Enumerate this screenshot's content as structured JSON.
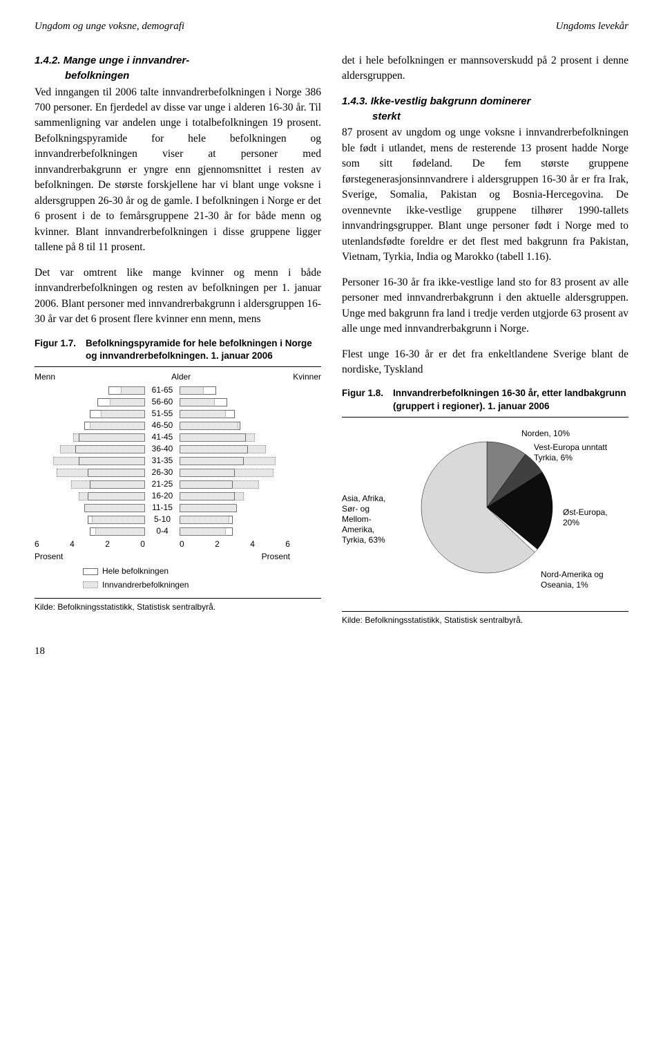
{
  "header": {
    "left": "Ungdom og unge voksne, demografi",
    "right": "Ungdoms levekår"
  },
  "left_col": {
    "sec142_title_a": "1.4.2. Mange unge i innvandrer-",
    "sec142_title_b": "befolkningen",
    "p1": "Ved inngangen til 2006 talte innvandrerbefolkningen i Norge 386 700 personer. En fjerdedel av disse var unge i alderen 16-30 år. Til sammenligning var andelen unge i totalbefolkningen 19 prosent. Befolkningspyramide for hele befolkningen og innvandrerbefolkningen viser at personer med innvandrerbakgrunn er yngre enn gjennomsnittet i resten av befolkningen. De største forskjellene har vi blant unge voksne i aldersgruppen 26-30 år og de gamle. I befolkningen i Norge er det 6 prosent i de to femårsgruppene 21-30 år for både menn og kvinner. Blant innvandrerbefolkningen i disse gruppene ligger tallene på 8 til 11 prosent.",
    "p2": "Det var omtrent like mange kvinner og menn i både innvandrerbefolkningen og resten av befolkningen per 1. januar 2006. Blant personer med innvandrerbakgrunn i aldersgruppen 16-30 år var det 6 prosent flere kvinner enn menn, mens"
  },
  "fig17": {
    "num": "Figur 1.7.",
    "title": "Befolkningspyramide for hele befolkningen i Norge og innvandrerbefolkningen. 1. januar 2006",
    "menn_label": "Menn",
    "alder_label": "Alder",
    "kvinner_label": "Kvinner",
    "prosent_left": "Prosent",
    "prosent_right": "Prosent",
    "legend_tot": "Hele befolkningen",
    "legend_imm": "Innvandrerbefolkningen",
    "source": "Kilde: Befolkningsstatistikk, Statistisk sentralbyrå.",
    "axis_max": 6,
    "ticks_left": [
      "6",
      "4",
      "2",
      "0"
    ],
    "ticks_right": [
      "0",
      "2",
      "4",
      "6"
    ],
    "rows": [
      {
        "label": "61-65",
        "m_tot": 2.0,
        "m_imm": 1.3,
        "k_tot": 2.0,
        "k_imm": 1.3
      },
      {
        "label": "56-60",
        "m_tot": 2.6,
        "m_imm": 1.9,
        "k_tot": 2.6,
        "k_imm": 1.9
      },
      {
        "label": "51-55",
        "m_tot": 3.0,
        "m_imm": 2.4,
        "k_tot": 3.0,
        "k_imm": 2.5
      },
      {
        "label": "46-50",
        "m_tot": 3.3,
        "m_imm": 3.0,
        "k_tot": 3.3,
        "k_imm": 3.2
      },
      {
        "label": "41-45",
        "m_tot": 3.6,
        "m_imm": 3.9,
        "k_tot": 3.6,
        "k_imm": 4.1
      },
      {
        "label": "36-40",
        "m_tot": 3.8,
        "m_imm": 4.6,
        "k_tot": 3.7,
        "k_imm": 4.7
      },
      {
        "label": "31-35",
        "m_tot": 3.6,
        "m_imm": 5.0,
        "k_tot": 3.5,
        "k_imm": 5.2
      },
      {
        "label": "26-30",
        "m_tot": 3.1,
        "m_imm": 4.8,
        "k_tot": 3.0,
        "k_imm": 5.1
      },
      {
        "label": "21-25",
        "m_tot": 3.0,
        "m_imm": 4.0,
        "k_tot": 2.9,
        "k_imm": 4.3
      },
      {
        "label": "16-20",
        "m_tot": 3.1,
        "m_imm": 3.6,
        "k_tot": 3.0,
        "k_imm": 3.5
      },
      {
        "label": "11-15",
        "m_tot": 3.3,
        "m_imm": 3.3,
        "k_tot": 3.1,
        "k_imm": 3.1
      },
      {
        "label": "5-10",
        "m_tot": 3.1,
        "m_imm": 2.9,
        "k_tot": 2.9,
        "k_imm": 2.7
      },
      {
        "label": "0-4",
        "m_tot": 3.0,
        "m_imm": 2.7,
        "k_tot": 2.9,
        "k_imm": 2.5
      }
    ]
  },
  "right_col": {
    "p1": "det i hele befolkningen er mannsoverskudd på 2 prosent i denne aldersgruppen.",
    "sec143_title_a": "1.4.3. Ikke-vestlig bakgrunn dominerer",
    "sec143_title_b": "sterkt",
    "p2": "87 prosent av ungdom og unge voksne i innvandrerbefolkningen ble født i utlandet, mens de resterende 13 prosent hadde Norge som sitt fødeland. De fem største gruppene førstegenerasjonsinnvandrere i aldersgruppen 16-30 år er fra Irak, Sverige, Somalia, Pakistan og Bosnia-Hercegovina. De ovennevnte ikke-vestlige gruppene tilhører 1990-tallets innvandringsgrupper. Blant unge personer født i Norge med to utenlandsfødte foreldre er det flest med bakgrunn fra Pakistan, Vietnam, Tyrkia, India og Marokko (tabell 1.16).",
    "p3": "Personer 16-30 år fra ikke-vestlige land sto for 83 prosent av alle personer med innvandrerbakgrunn i den aktuelle aldersgruppen. Unge med bakgrunn fra land i tredje verden utgjorde 63 prosent av alle unge med innvandrerbakgrunn i Norge.",
    "p4": "Flest unge 16-30 år er det fra enkeltlandene Sverige blant de nordiske, Tyskland"
  },
  "fig18": {
    "num": "Figur 1.8.",
    "title": "Innvandrerbefolkningen 16-30 år, etter landbakgrunn (gruppert i regioner). 1. januar 2006",
    "source": "Kilde: Befolkningsstatistikk, Statistisk sentralbyrå.",
    "slices": [
      {
        "label": "Norden, 10%",
        "value": 10,
        "color": "#808080"
      },
      {
        "label": "Vest-Europa unntatt Tyrkia, 6%",
        "value": 6,
        "color": "#404040"
      },
      {
        "label": "Øst-Europa, 20%",
        "value": 20,
        "color": "#0d0d0d"
      },
      {
        "label": "Nord-Amerika og Oseania, 1%",
        "value": 1,
        "color": "#ffffff"
      },
      {
        "label": "Asia, Afrika, Sør- og Mellom-Amerika, Tyrkia, 63%",
        "value": 63,
        "color": "#d9d9d9"
      }
    ],
    "label_positions": {
      "norden": "Norden, 10%",
      "vest": "Vest-Europa unntatt<br>Tyrkia, 6%",
      "ost": "Øst-Europa,<br>20%",
      "nord_amerika": "Nord-Amerika og<br>Oseania, 1%",
      "asia": "Asia, Afrika,<br>Sør- og<br>Mellom-<br>Amerika,<br>Tyrkia, 63%"
    }
  },
  "page_number": "18"
}
